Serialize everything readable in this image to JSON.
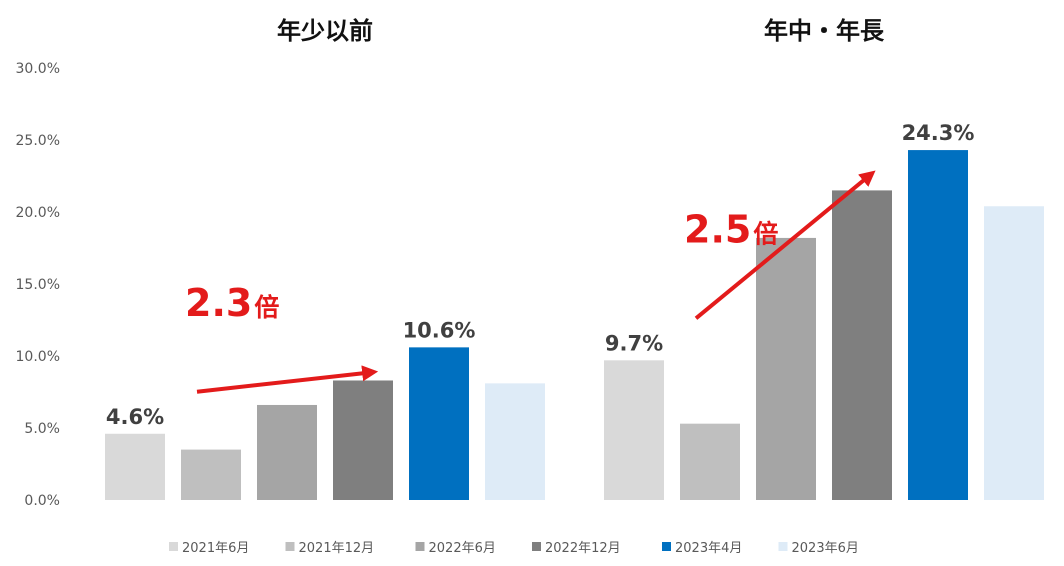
{
  "chart_data": {
    "type": "bar",
    "groups": [
      "年少以前",
      "年中・年長"
    ],
    "series": [
      {
        "name": "2021年6月",
        "color": "#d9d9d9",
        "values": [
          4.6,
          9.7
        ]
      },
      {
        "name": "2021年12月",
        "color": "#bfbfbf",
        "values": [
          3.5,
          5.3
        ]
      },
      {
        "name": "2022年6月",
        "color": "#a5a5a5",
        "values": [
          6.6,
          18.2
        ]
      },
      {
        "name": "2022年12月",
        "color": "#7f7f7f",
        "values": [
          8.3,
          21.5
        ]
      },
      {
        "name": "2023年4月",
        "color": "#0070c0",
        "values": [
          10.6,
          24.3
        ]
      },
      {
        "name": "2023年6月",
        "color": "#deebf7",
        "values": [
          8.1,
          20.4
        ]
      }
    ],
    "ylim": [
      0,
      30
    ],
    "yticks": [
      "0.0%",
      "5.0%",
      "10.0%",
      "15.0%",
      "20.0%",
      "25.0%",
      "30.0%"
    ],
    "legend_position": "bottom",
    "data_labels": [
      {
        "group": 0,
        "series": 0,
        "text": "4.6%"
      },
      {
        "group": 0,
        "series": 4,
        "text": "10.6%"
      },
      {
        "group": 1,
        "series": 0,
        "text": "9.7%"
      },
      {
        "group": 1,
        "series": 4,
        "text": "24.3%"
      }
    ],
    "annotations": [
      {
        "group": 0,
        "value": "2.3",
        "suffix": "倍",
        "arrow_color": "#e31b1b"
      },
      {
        "group": 1,
        "value": "2.5",
        "suffix": "倍",
        "arrow_color": "#e31b1b"
      }
    ]
  }
}
